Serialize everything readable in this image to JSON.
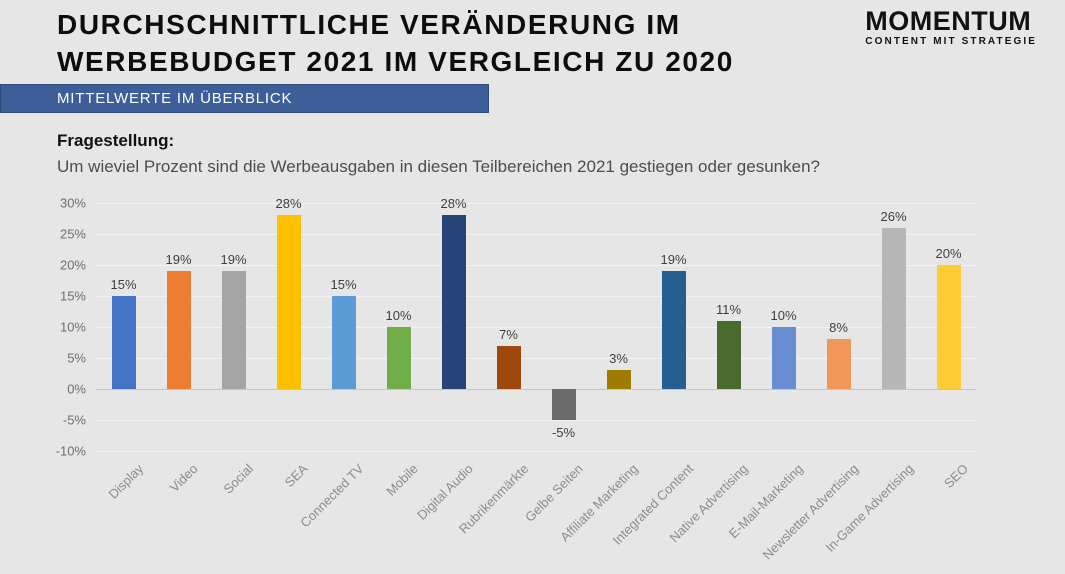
{
  "header": {
    "title_line1": "DURCHSCHNITTLICHE VERÄNDERUNG IM",
    "title_line2": "WERBEBUDGET 2021 IM VERGLEICH ZU 2020",
    "banner": "MITTELWERTE IM ÜBERBLICK",
    "logo": {
      "name": "MOMENTUM",
      "tagline": "CONTENT MIT STRATEGIE"
    }
  },
  "question": {
    "label": "Fragestellung:",
    "text": "Um wieviel Prozent sind die Werbeausgaben in diesen Teilbereichen 2021 gestiegen oder gesunken?"
  },
  "chart_data": {
    "type": "bar",
    "title": "Durchschnittliche Veränderung im Werbebudget 2021 im Vergleich zu 2020 (Mittelwerte)",
    "categories": [
      "Display",
      "Video",
      "Social",
      "SEA",
      "Connected TV",
      "Mobile",
      "Digital Audio",
      "Rubrikenmärkte",
      "Gelbe Seiten",
      "Affiliate Marketing",
      "Integrated Content",
      "Native Advertising",
      "E-Mail-Marketing",
      "Newsletter Advertising",
      "In-Game Advertising",
      "SEO"
    ],
    "values": [
      15,
      19,
      19,
      28,
      15,
      10,
      28,
      7,
      -5,
      3,
      19,
      11,
      10,
      8,
      26,
      20
    ],
    "value_labels": [
      "15%",
      "19%",
      "19%",
      "28%",
      "15%",
      "10%",
      "28%",
      "7%",
      "-5%",
      "3%",
      "19%",
      "11%",
      "10%",
      "8%",
      "26%",
      "20%"
    ],
    "bar_colors": [
      "#4472C4",
      "#ED7D31",
      "#A5A5A5",
      "#FFC000",
      "#5B9BD5",
      "#70AD47",
      "#264478",
      "#9E480E",
      "#6B6B6B",
      "#9E7C00",
      "#255E91",
      "#4A6B2E",
      "#698ED0",
      "#F1975A",
      "#B7B7B7",
      "#FFCD33"
    ],
    "y_ticks": [
      30,
      25,
      20,
      15,
      10,
      5,
      0,
      -5,
      -10
    ],
    "y_tick_labels": [
      "30%",
      "25%",
      "20%",
      "15%",
      "10%",
      "5%",
      "0%",
      "-5%",
      "-10%"
    ],
    "ylim": [
      -10,
      30
    ],
    "xlabel": "",
    "ylabel": "",
    "grid": true,
    "legend": "none",
    "x_label_rotation_deg": 45
  },
  "colors": {
    "background": "#E7E6E6",
    "banner_bg": "#3D5E99",
    "banner_text": "#FFFFFF",
    "gridline": "#F4F3F3",
    "zero_line": "#C6C4C4",
    "axis_tick_text": "#6E6E6E",
    "category_text": "#8C8C8C",
    "value_label_text": "#3F3F3F"
  }
}
